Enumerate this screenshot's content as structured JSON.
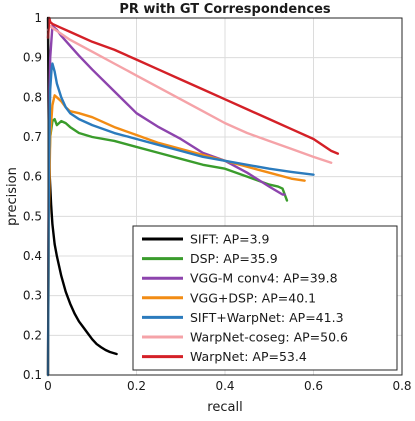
{
  "chart_data": {
    "type": "line",
    "title": "PR with GT Correspondences",
    "xlabel": "recall",
    "ylabel": "precision",
    "xlim": [
      0,
      0.8
    ],
    "ylim": [
      0.1,
      1
    ],
    "xticks": [
      0,
      0.2,
      0.4,
      0.6,
      0.8
    ],
    "xtick_labels": [
      "0",
      "0.2",
      "0.4",
      "0.6",
      "0.8"
    ],
    "yticks": [
      0.1,
      0.2,
      0.3,
      0.4,
      0.5,
      0.6,
      0.7,
      0.8,
      0.9,
      1
    ],
    "ytick_labels": [
      "0.1",
      "0.2",
      "0.3",
      "0.4",
      "0.5",
      "0.6",
      "0.7",
      "0.8",
      "0.9",
      "1"
    ],
    "grid": true,
    "legend_position": "bottom-right",
    "series": [
      {
        "name": "SIFT: AP=3.9",
        "color": "#000000",
        "x": [
          0.0,
          0.001,
          0.002,
          0.004,
          0.007,
          0.01,
          0.015,
          0.02,
          0.03,
          0.04,
          0.05,
          0.06,
          0.07,
          0.08,
          0.09,
          0.1,
          0.11,
          0.12,
          0.13,
          0.14,
          0.155
        ],
        "y": [
          1.0,
          0.8,
          0.7,
          0.6,
          0.53,
          0.48,
          0.43,
          0.4,
          0.35,
          0.31,
          0.28,
          0.255,
          0.235,
          0.22,
          0.205,
          0.19,
          0.178,
          0.17,
          0.163,
          0.158,
          0.153
        ]
      },
      {
        "name": "DSP: AP=35.9",
        "color": "#3a9c2c",
        "x": [
          0.0,
          0.002,
          0.005,
          0.01,
          0.015,
          0.02,
          0.03,
          0.04,
          0.05,
          0.07,
          0.1,
          0.15,
          0.2,
          0.25,
          0.3,
          0.35,
          0.4,
          0.45,
          0.5,
          0.52,
          0.53,
          0.535,
          0.54
        ],
        "y": [
          0.1,
          0.6,
          0.7,
          0.74,
          0.745,
          0.73,
          0.74,
          0.735,
          0.725,
          0.71,
          0.7,
          0.69,
          0.675,
          0.66,
          0.645,
          0.63,
          0.62,
          0.6,
          0.58,
          0.575,
          0.57,
          0.555,
          0.54
        ]
      },
      {
        "name": "VGG-M conv4: AP=39.8",
        "color": "#8d44ad",
        "x": [
          0.0,
          0.002,
          0.005,
          0.01,
          0.02,
          0.03,
          0.05,
          0.07,
          0.1,
          0.15,
          0.2,
          0.25,
          0.3,
          0.35,
          0.4,
          0.45,
          0.5,
          0.53,
          0.535
        ],
        "y": [
          0.1,
          0.7,
          0.9,
          0.98,
          0.97,
          0.955,
          0.93,
          0.905,
          0.87,
          0.815,
          0.76,
          0.725,
          0.695,
          0.66,
          0.64,
          0.61,
          0.575,
          0.555,
          0.555
        ]
      },
      {
        "name": "VGG+DSP: AP=40.1",
        "color": "#f28c14",
        "x": [
          0.0,
          0.002,
          0.005,
          0.01,
          0.015,
          0.02,
          0.03,
          0.04,
          0.05,
          0.07,
          0.1,
          0.15,
          0.2,
          0.25,
          0.3,
          0.35,
          0.4,
          0.45,
          0.5,
          0.55,
          0.58
        ],
        "y": [
          0.1,
          0.5,
          0.7,
          0.78,
          0.805,
          0.8,
          0.79,
          0.775,
          0.765,
          0.76,
          0.75,
          0.725,
          0.705,
          0.685,
          0.67,
          0.655,
          0.64,
          0.625,
          0.61,
          0.595,
          0.59
        ]
      },
      {
        "name": "SIFT+WarpNet: AP=41.3",
        "color": "#2b7bbd",
        "x": [
          0.0,
          0.002,
          0.005,
          0.008,
          0.01,
          0.015,
          0.02,
          0.03,
          0.04,
          0.05,
          0.07,
          0.1,
          0.15,
          0.2,
          0.25,
          0.3,
          0.35,
          0.4,
          0.45,
          0.5,
          0.55,
          0.6
        ],
        "y": [
          0.1,
          0.6,
          0.82,
          0.87,
          0.885,
          0.865,
          0.835,
          0.8,
          0.775,
          0.76,
          0.745,
          0.73,
          0.71,
          0.695,
          0.68,
          0.665,
          0.65,
          0.64,
          0.63,
          0.62,
          0.612,
          0.605
        ]
      },
      {
        "name": "WarpNet-coseg: AP=50.6",
        "color": "#f5a3a8",
        "x": [
          0.0,
          0.005,
          0.01,
          0.03,
          0.05,
          0.1,
          0.15,
          0.2,
          0.25,
          0.3,
          0.35,
          0.4,
          0.45,
          0.5,
          0.55,
          0.6,
          0.64
        ],
        "y": [
          0.97,
          0.98,
          0.975,
          0.96,
          0.945,
          0.915,
          0.885,
          0.855,
          0.825,
          0.795,
          0.765,
          0.735,
          0.71,
          0.69,
          0.67,
          0.65,
          0.635
        ]
      },
      {
        "name": "WarpNet: AP=53.4",
        "color": "#d42027",
        "x": [
          0.0,
          0.003,
          0.005,
          0.01,
          0.03,
          0.05,
          0.1,
          0.15,
          0.2,
          0.25,
          0.3,
          0.35,
          0.4,
          0.45,
          0.5,
          0.55,
          0.6,
          0.64,
          0.655
        ],
        "y": [
          0.95,
          1.0,
          0.99,
          0.985,
          0.975,
          0.965,
          0.94,
          0.92,
          0.895,
          0.87,
          0.845,
          0.82,
          0.795,
          0.77,
          0.745,
          0.72,
          0.695,
          0.665,
          0.658
        ]
      }
    ]
  }
}
